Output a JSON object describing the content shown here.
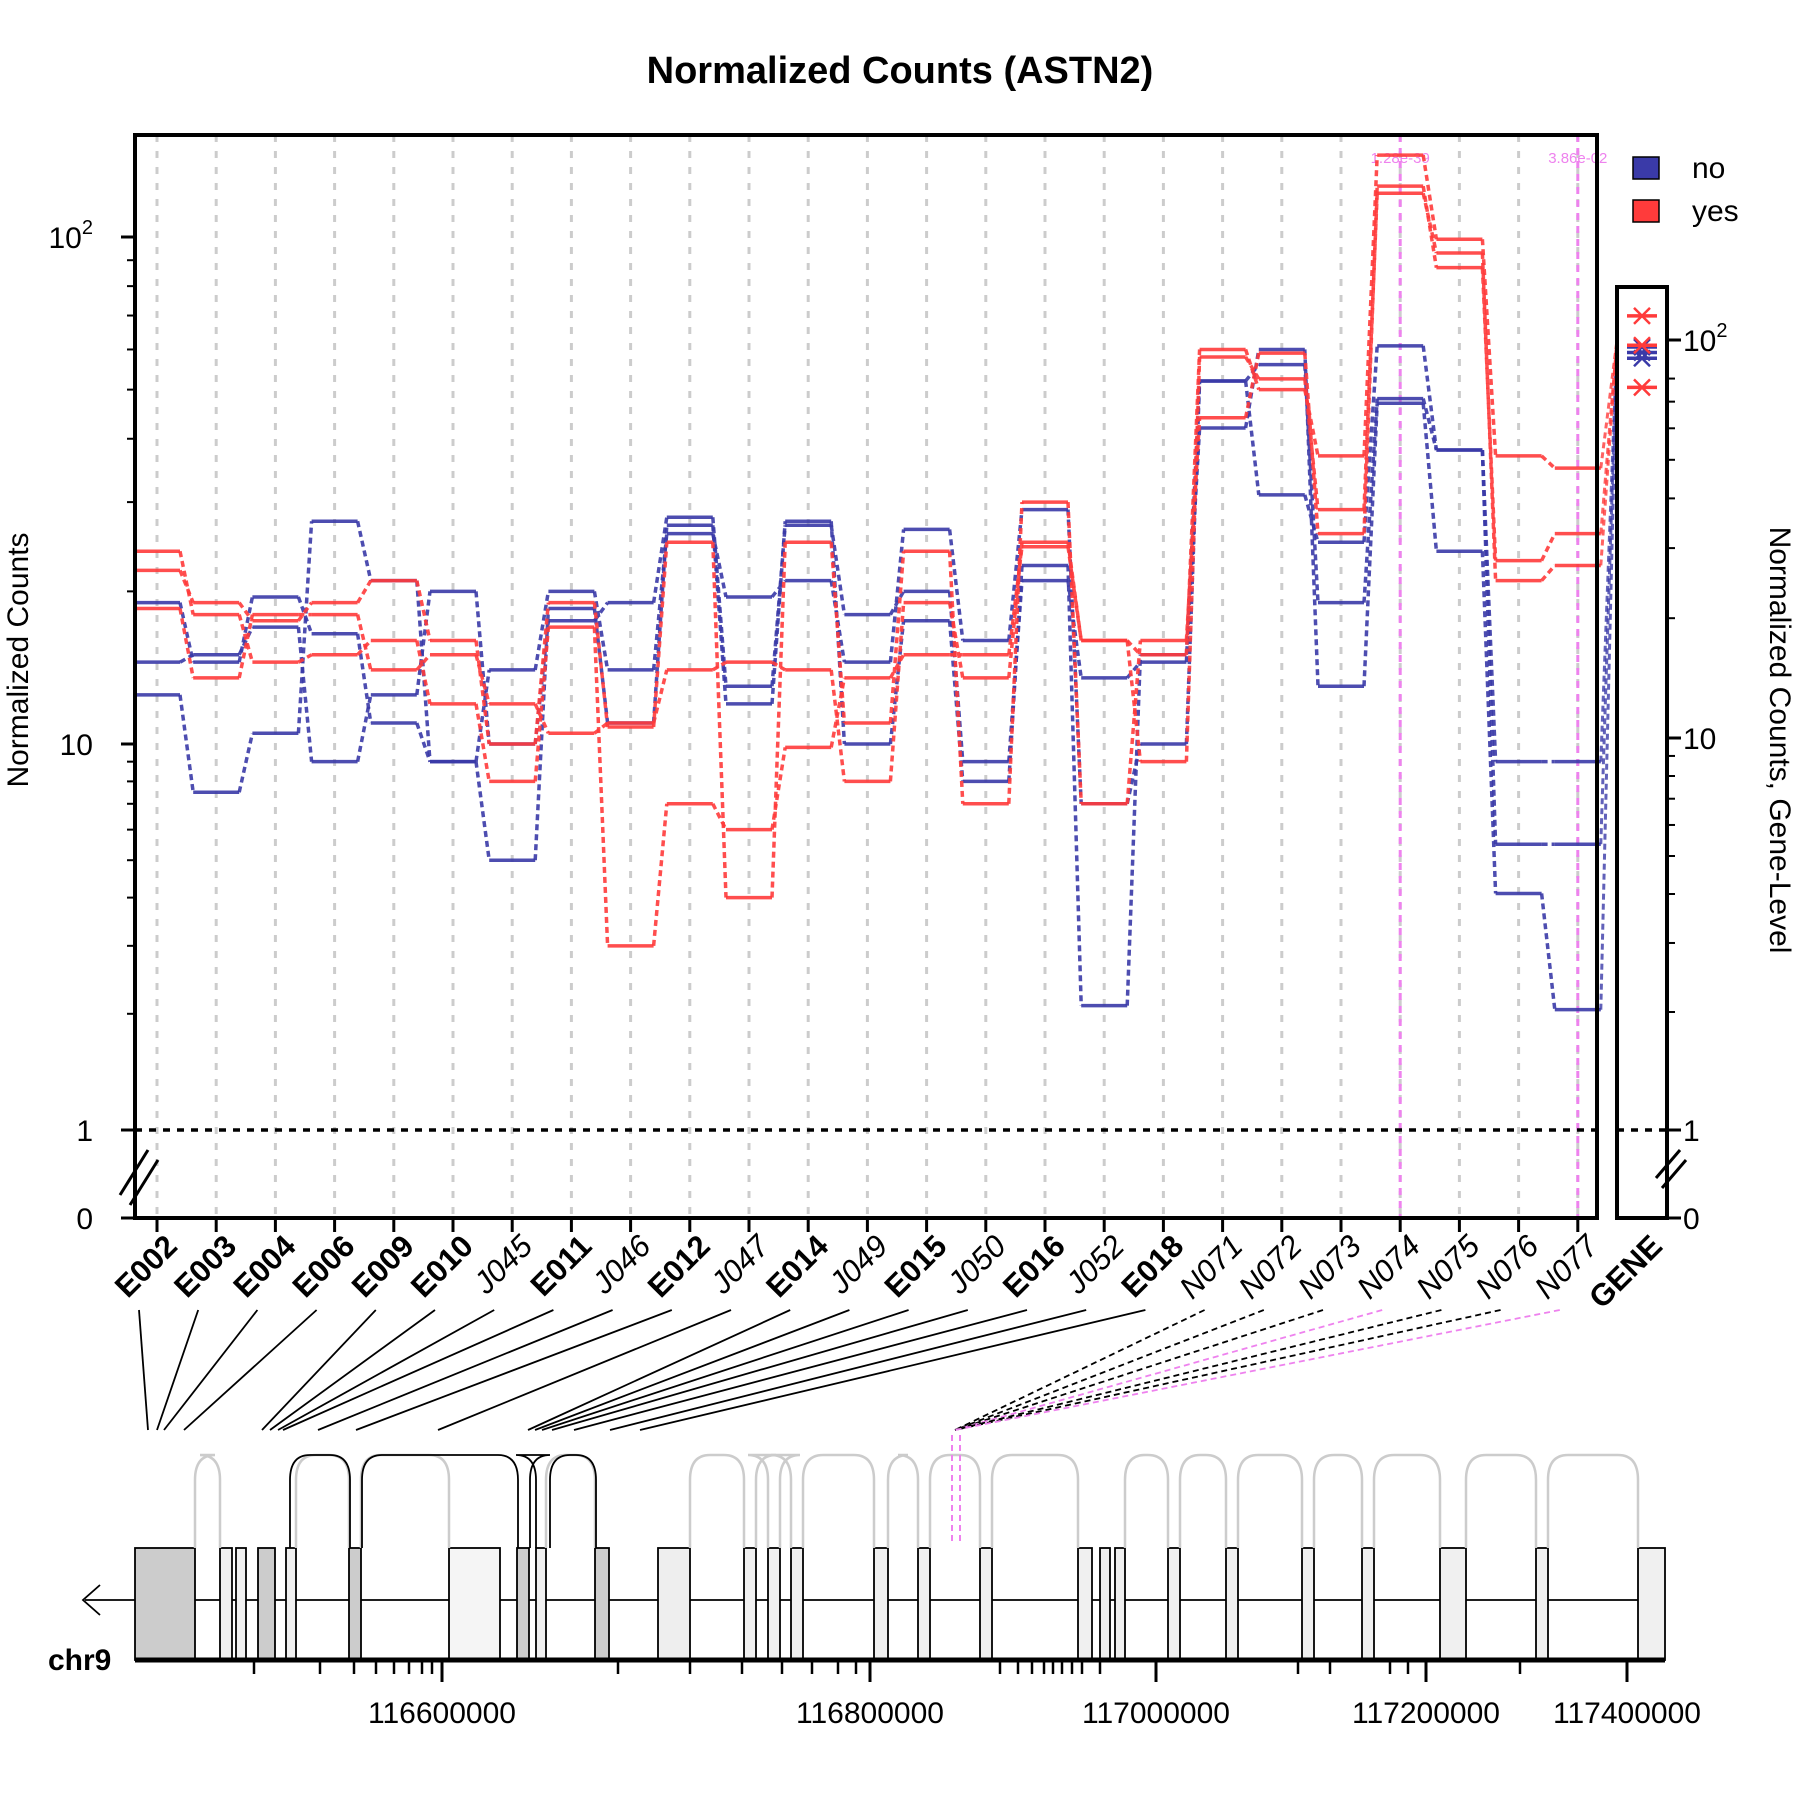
{
  "chart_data": {
    "type": "line",
    "title": "Normalized Counts (ASTN2)",
    "ylabel": "Normalized Counts",
    "ylabel_right": "Normalized Counts, Gene-Level",
    "yscale": "log",
    "ylim": [
      0,
      150
    ],
    "yticks": [
      {
        "value": 0,
        "label": "0"
      },
      {
        "value": 1,
        "label": "1"
      },
      {
        "value": 10,
        "label": "10"
      },
      {
        "value": 100,
        "label": "10^2"
      }
    ],
    "grid": true,
    "legend_position": "top-right",
    "legend": [
      {
        "label": "no",
        "color": "#3a3aa8"
      },
      {
        "label": "yes",
        "color": "#ff3b3b"
      }
    ],
    "features": [
      {
        "id": "E002",
        "kind": "exon"
      },
      {
        "id": "E003",
        "kind": "exon"
      },
      {
        "id": "E004",
        "kind": "exon"
      },
      {
        "id": "E006",
        "kind": "exon"
      },
      {
        "id": "E009",
        "kind": "exon"
      },
      {
        "id": "E010",
        "kind": "exon"
      },
      {
        "id": "J045",
        "kind": "junction"
      },
      {
        "id": "E011",
        "kind": "exon"
      },
      {
        "id": "J046",
        "kind": "junction"
      },
      {
        "id": "E012",
        "kind": "exon"
      },
      {
        "id": "J047",
        "kind": "junction"
      },
      {
        "id": "E014",
        "kind": "exon"
      },
      {
        "id": "J049",
        "kind": "junction"
      },
      {
        "id": "E015",
        "kind": "exon"
      },
      {
        "id": "J050",
        "kind": "junction"
      },
      {
        "id": "E016",
        "kind": "exon"
      },
      {
        "id": "J052",
        "kind": "junction"
      },
      {
        "id": "E018",
        "kind": "exon"
      },
      {
        "id": "N071",
        "kind": "novel"
      },
      {
        "id": "N072",
        "kind": "novel"
      },
      {
        "id": "N073",
        "kind": "novel"
      },
      {
        "id": "N074",
        "kind": "novel"
      },
      {
        "id": "N075",
        "kind": "novel"
      },
      {
        "id": "N076",
        "kind": "novel"
      },
      {
        "id": "N077",
        "kind": "novel"
      }
    ],
    "gene_label": "GENE",
    "significant": [
      {
        "feature": "N074",
        "pvalue": "1.28e-39"
      },
      {
        "feature": "N077",
        "pvalue": "3.86e-02"
      }
    ],
    "series": [
      {
        "group": "no",
        "values": [
          19,
          14.5,
          19.5,
          16.5,
          11,
          9,
          5,
          18.5,
          11,
          27,
          12,
          27.5,
          10,
          17.5,
          8,
          22.5,
          2.1,
          15,
          42,
          60,
          13,
          47,
          24,
          4.1,
          2.05
        ]
      },
      {
        "group": "no",
        "values": [
          14.5,
          15,
          17,
          9,
          12.5,
          20,
          10,
          17.5,
          19,
          28,
          13,
          27,
          18,
          20,
          9,
          21,
          13.5,
          14.5,
          52,
          56,
          19,
          48,
          38,
          5.5,
          5.5
        ]
      },
      {
        "group": "no",
        "values": [
          12.5,
          7.5,
          10.5,
          27.5,
          21,
          9,
          14,
          20,
          14,
          26,
          19.5,
          21,
          14.5,
          26.5,
          16,
          29,
          7,
          10,
          52,
          31,
          25,
          61,
          38,
          9,
          9
        ]
      },
      {
        "group": "yes",
        "values": [
          24,
          18,
          14.5,
          15,
          16,
          12,
          8,
          17,
          3,
          7,
          6,
          9.8,
          13.5,
          15,
          15,
          24.5,
          16,
          15,
          60,
          50,
          37,
          145,
          99,
          37,
          35
        ]
      },
      {
        "group": "yes",
        "values": [
          22,
          19,
          17.5,
          19,
          21,
          16,
          10,
          19,
          10.8,
          25,
          4,
          25,
          11,
          24,
          7,
          30,
          7,
          16,
          44,
          59,
          26,
          126,
          87,
          23,
          26
        ]
      },
      {
        "group": "yes",
        "values": [
          18.5,
          13.5,
          18,
          18,
          14,
          15,
          12,
          10.5,
          11,
          14,
          14.5,
          14,
          8,
          19,
          13.5,
          25,
          16,
          9,
          58,
          52.5,
          29,
          122,
          93,
          21,
          22.5
        ]
      }
    ],
    "gene_level": [
      {
        "group": "no",
        "values": [
          90,
          93,
          96
        ]
      },
      {
        "group": "yes",
        "values": [
          76,
          97,
          115
        ]
      }
    ],
    "genome_track": {
      "chromosome": "chr9",
      "xticks": [
        "116600000",
        "116800000",
        "117000000",
        "117200000",
        "117400000"
      ],
      "strand": "minus"
    }
  },
  "colors": {
    "no": "#3a3aa8",
    "yes": "#ff3b3b",
    "significant": "#ee82ee",
    "grid": "#cccccc",
    "structure_gray": "#cccccc"
  }
}
